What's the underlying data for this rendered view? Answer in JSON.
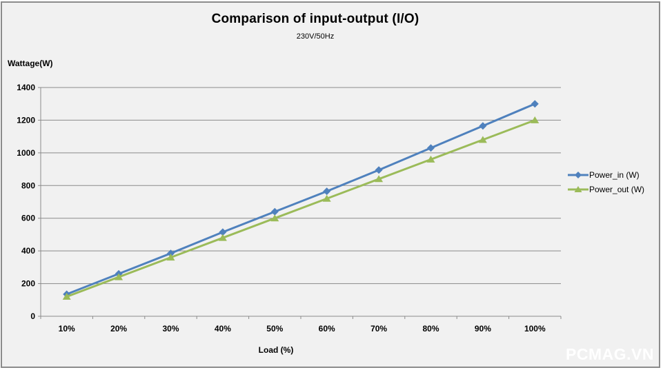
{
  "chart_data": {
    "type": "line",
    "title": "Comparison of input-output (I/O)",
    "subtitle": "230V/50Hz",
    "ylabel": "Wattage(W)",
    "xlabel": "Load (%)",
    "categories": [
      "10%",
      "20%",
      "30%",
      "40%",
      "50%",
      "60%",
      "70%",
      "80%",
      "90%",
      "100%"
    ],
    "series": [
      {
        "name": "Power_in (W)",
        "values": [
          135,
          260,
          385,
          515,
          640,
          765,
          895,
          1030,
          1165,
          1300
        ],
        "color": "#4F81BD",
        "marker": "diamond"
      },
      {
        "name": "Power_out (W)",
        "values": [
          120,
          240,
          360,
          480,
          600,
          720,
          840,
          960,
          1080,
          1200
        ],
        "color": "#9BBB59",
        "marker": "triangle"
      }
    ],
    "ylim": [
      0,
      1400
    ],
    "ytick_step": 200,
    "grid": true,
    "legend_position": "right"
  },
  "watermark": "PCMAG.VN",
  "colors": {
    "background": "#F1F1F1",
    "frame_border": "#8B8B8B",
    "gridline": "#8A8A8A",
    "text": "#000000",
    "watermark": "#FFFFFF"
  }
}
